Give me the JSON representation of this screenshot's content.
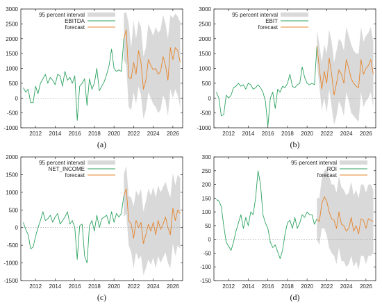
{
  "colors": {
    "actual": "#2ca25f",
    "forecast": "#e6842a",
    "interval": "#d9d9d9",
    "axis": "#222222",
    "zero_line": "#9a9a9a"
  },
  "chart_data": [
    {
      "type": "line",
      "caption": "(a)",
      "legend": {
        "placement": "top-left",
        "interval_label": "95 percent interval",
        "series_label": "EBITDA",
        "forecast_label": "forecast"
      },
      "ylim": [
        -1000,
        3000
      ],
      "yticks": [
        -1000,
        -500,
        0,
        500,
        1000,
        1500,
        2000,
        2500,
        3000
      ],
      "xlim": [
        2010.5,
        2027.0
      ],
      "xticks": [
        2012,
        2014,
        2016,
        2018,
        2020,
        2022,
        2024,
        2026
      ],
      "series": [
        {
          "name": "EBITDA",
          "role": "actual",
          "x": [
            2010.75,
            2011.0,
            2011.25,
            2011.5,
            2011.75,
            2012.0,
            2012.25,
            2012.5,
            2012.75,
            2013.0,
            2013.25,
            2013.5,
            2013.75,
            2014.0,
            2014.25,
            2014.5,
            2014.75,
            2015.0,
            2015.25,
            2015.5,
            2015.75,
            2016.0,
            2016.25,
            2016.5,
            2016.75,
            2017.0,
            2017.25,
            2017.5,
            2017.75,
            2018.0,
            2018.25,
            2018.5,
            2018.75,
            2019.0,
            2019.25,
            2019.5,
            2019.75,
            2020.0,
            2020.25,
            2020.5,
            2020.75,
            2021.0
          ],
          "y": [
            350,
            200,
            300,
            -150,
            -150,
            400,
            150,
            500,
            650,
            800,
            500,
            700,
            600,
            450,
            800,
            750,
            400,
            900,
            600,
            700,
            500,
            750,
            -750,
            400,
            500,
            650,
            -250,
            650,
            300,
            500,
            1000,
            250,
            400,
            550,
            800,
            1100,
            1650,
            1000,
            900,
            950,
            900,
            2000
          ]
        },
        {
          "name": "forecast",
          "role": "forecast",
          "x": [
            2021.0,
            2021.25,
            2021.5,
            2021.75,
            2022.0,
            2022.25,
            2022.5,
            2022.75,
            2023.0,
            2023.25,
            2023.5,
            2023.75,
            2024.0,
            2024.25,
            2024.5,
            2024.75,
            2025.0,
            2025.25,
            2025.5,
            2025.75,
            2026.0,
            2026.25,
            2026.5,
            2026.75
          ],
          "y": [
            2000,
            2300,
            700,
            650,
            1200,
            800,
            1600,
            1200,
            300,
            600,
            1300,
            1100,
            950,
            1000,
            800,
            900,
            1400,
            1100,
            600,
            1700,
            1300,
            1700,
            1600,
            1200
          ]
        },
        {
          "name": "95 percent interval",
          "role": "interval",
          "x": [
            2021.0,
            2021.25,
            2021.5,
            2021.75,
            2022.0,
            2022.25,
            2022.5,
            2022.75,
            2023.0,
            2023.25,
            2023.5,
            2023.75,
            2024.0,
            2024.25,
            2024.5,
            2024.75,
            2025.0,
            2025.25,
            2025.5,
            2025.75,
            2026.0,
            2026.25,
            2026.5,
            2026.75
          ],
          "lower": [
            1300,
            1100,
            -300,
            -400,
            200,
            -200,
            400,
            100,
            -700,
            -400,
            200,
            0,
            -200,
            -300,
            -500,
            -400,
            100,
            -100,
            -600,
            300,
            0,
            300,
            100,
            -300
          ],
          "upper": [
            2850,
            2900,
            2500,
            1700,
            2600,
            2000,
            2600,
            2400,
            1400,
            1700,
            2500,
            2300,
            2100,
            2400,
            2200,
            2300,
            2800,
            2500,
            2000,
            2800,
            2700,
            2850,
            2750,
            2550
          ]
        }
      ]
    },
    {
      "type": "line",
      "caption": "(b)",
      "legend": {
        "placement": "top-left",
        "interval_label": "95 percent interval",
        "series_label": "EBIT",
        "forecast_label": "forecast"
      },
      "ylim": [
        -1000,
        3000
      ],
      "yticks": [
        -1000,
        -500,
        0,
        500,
        1000,
        1500,
        2000,
        2500,
        3000
      ],
      "xlim": [
        2010.5,
        2027.0
      ],
      "xticks": [
        2012,
        2014,
        2016,
        2018,
        2020,
        2022,
        2024,
        2026
      ],
      "series": [
        {
          "name": "EBIT",
          "role": "actual",
          "x": [
            2010.75,
            2011.0,
            2011.25,
            2011.5,
            2011.75,
            2012.0,
            2012.25,
            2012.5,
            2012.75,
            2013.0,
            2013.25,
            2013.5,
            2013.75,
            2014.0,
            2014.25,
            2014.5,
            2014.75,
            2015.0,
            2015.25,
            2015.5,
            2015.75,
            2016.0,
            2016.25,
            2016.5,
            2016.75,
            2017.0,
            2017.25,
            2017.5,
            2017.75,
            2018.0,
            2018.25,
            2018.5,
            2018.75,
            2019.0,
            2019.25,
            2019.5,
            2019.75,
            2020.0,
            2020.25,
            2020.5,
            2020.75,
            2021.0
          ],
          "y": [
            200,
            0,
            -600,
            -550,
            100,
            0,
            100,
            350,
            400,
            500,
            400,
            450,
            300,
            500,
            450,
            300,
            350,
            450,
            350,
            200,
            -100,
            -950,
            0,
            200,
            -350,
            300,
            200,
            400,
            350,
            500,
            800,
            400,
            350,
            450,
            500,
            1050,
            700,
            500,
            450,
            500,
            450,
            1750
          ]
        },
        {
          "name": "forecast",
          "role": "forecast",
          "x": [
            2021.0,
            2021.25,
            2021.5,
            2021.75,
            2022.0,
            2022.25,
            2022.5,
            2022.75,
            2023.0,
            2023.25,
            2023.5,
            2023.75,
            2024.0,
            2024.25,
            2024.5,
            2024.75,
            2025.0,
            2025.25,
            2025.5,
            2025.75,
            2026.0,
            2026.25,
            2026.5,
            2026.75
          ],
          "y": [
            1750,
            1000,
            300,
            900,
            500,
            1350,
            800,
            100,
            500,
            950,
            800,
            500,
            1300,
            1000,
            650,
            500,
            400,
            350,
            1300,
            800,
            1000,
            1100,
            1300,
            800
          ]
        },
        {
          "name": "95 percent interval",
          "role": "interval",
          "x": [
            2021.0,
            2021.25,
            2021.5,
            2021.75,
            2022.0,
            2022.25,
            2022.5,
            2022.75,
            2023.0,
            2023.25,
            2023.5,
            2023.75,
            2024.0,
            2024.25,
            2024.5,
            2024.75,
            2025.0,
            2025.25,
            2025.5,
            2025.75,
            2026.0,
            2026.25,
            2026.5,
            2026.75
          ],
          "lower": [
            1200,
            400,
            -400,
            0,
            -500,
            300,
            -300,
            -900,
            -600,
            -100,
            -300,
            -600,
            200,
            -100,
            -500,
            -600,
            -700,
            -800,
            200,
            -300,
            -100,
            0,
            200,
            -300
          ],
          "upper": [
            2300,
            1800,
            1200,
            1800,
            1500,
            2300,
            1900,
            1200,
            1600,
            2000,
            1900,
            1600,
            2400,
            2100,
            1800,
            1600,
            1500,
            1500,
            2400,
            1900,
            2100,
            2200,
            2400,
            1900
          ]
        }
      ]
    },
    {
      "type": "line",
      "caption": "(c)",
      "legend": {
        "placement": "top-left",
        "interval_label": "95 percent interval",
        "series_label": "NET_INCOME",
        "forecast_label": "forecast"
      },
      "ylim": [
        -1500,
        2000
      ],
      "yticks": [
        -1500,
        -1000,
        -500,
        0,
        500,
        1000,
        1500,
        2000
      ],
      "xlim": [
        2010.5,
        2027.0
      ],
      "xticks": [
        2012,
        2014,
        2016,
        2018,
        2020,
        2022,
        2024,
        2026
      ],
      "series": [
        {
          "name": "NET_INCOME",
          "role": "actual",
          "x": [
            2010.75,
            2011.0,
            2011.25,
            2011.5,
            2011.75,
            2012.0,
            2012.25,
            2012.5,
            2012.75,
            2013.0,
            2013.25,
            2013.5,
            2013.75,
            2014.0,
            2014.25,
            2014.5,
            2014.75,
            2015.0,
            2015.25,
            2015.5,
            2015.75,
            2016.0,
            2016.25,
            2016.5,
            2016.75,
            2017.0,
            2017.25,
            2017.5,
            2017.75,
            2018.0,
            2018.25,
            2018.5,
            2018.75,
            2019.0,
            2019.25,
            2019.5,
            2019.75,
            2020.0,
            2020.25,
            2020.5,
            2020.75,
            2021.0
          ],
          "y": [
            150,
            -50,
            -200,
            -600,
            -550,
            -250,
            0,
            200,
            450,
            200,
            250,
            350,
            150,
            300,
            400,
            100,
            200,
            300,
            450,
            100,
            200,
            0,
            -900,
            50,
            100,
            -800,
            -1000,
            50,
            200,
            -100,
            350,
            0,
            250,
            300,
            350,
            100,
            450,
            150,
            400,
            300,
            400,
            900
          ]
        },
        {
          "name": "forecast",
          "role": "forecast",
          "x": [
            2021.0,
            2021.25,
            2021.5,
            2021.75,
            2022.0,
            2022.25,
            2022.5,
            2022.75,
            2023.0,
            2023.25,
            2023.5,
            2023.75,
            2024.0,
            2024.25,
            2024.5,
            2024.75,
            2025.0,
            2025.25,
            2025.5,
            2025.75,
            2026.0,
            2026.25,
            2026.5,
            2026.75
          ],
          "y": [
            900,
            1100,
            200,
            100,
            -300,
            200,
            0,
            150,
            -450,
            -200,
            100,
            -100,
            150,
            -200,
            200,
            -50,
            100,
            300,
            0,
            -200,
            550,
            200,
            500,
            400
          ]
        },
        {
          "name": "95 percent interval",
          "role": "interval",
          "x": [
            2021.0,
            2021.25,
            2021.5,
            2021.75,
            2022.0,
            2022.25,
            2022.5,
            2022.75,
            2023.0,
            2023.25,
            2023.5,
            2023.75,
            2024.0,
            2024.25,
            2024.5,
            2024.75,
            2025.0,
            2025.25,
            2025.5,
            2025.75,
            2026.0,
            2026.25,
            2026.5,
            2026.75
          ],
          "lower": [
            300,
            400,
            -500,
            -700,
            -1150,
            -700,
            -900,
            -800,
            -1350,
            -1150,
            -900,
            -1050,
            -850,
            -1150,
            -800,
            -1000,
            -850,
            -700,
            -1000,
            -1150,
            -450,
            -800,
            -500,
            -600
          ],
          "upper": [
            1500,
            1750,
            900,
            850,
            600,
            1050,
            900,
            1100,
            450,
            750,
            1100,
            900,
            1150,
            850,
            1200,
            1000,
            1150,
            1300,
            1050,
            850,
            1550,
            1200,
            1500,
            1400
          ]
        }
      ]
    },
    {
      "type": "line",
      "caption": "(d)",
      "legend": {
        "placement": "top-right",
        "interval_label": "95 percent interval",
        "series_label": "ROI",
        "forecast_label": "forecast"
      },
      "ylim": [
        -150,
        300
      ],
      "yticks": [
        -150,
        -100,
        -50,
        0,
        50,
        100,
        150,
        200,
        250,
        300
      ],
      "xlim": [
        2010.5,
        2027.0
      ],
      "xticks": [
        2012,
        2014,
        2016,
        2018,
        2020,
        2022,
        2024,
        2026
      ],
      "series": [
        {
          "name": "ROI",
          "role": "actual",
          "x": [
            2010.75,
            2011.0,
            2011.25,
            2011.5,
            2011.75,
            2012.0,
            2012.25,
            2012.5,
            2012.75,
            2013.0,
            2013.25,
            2013.5,
            2013.75,
            2014.0,
            2014.25,
            2014.5,
            2014.75,
            2015.0,
            2015.25,
            2015.5,
            2015.75,
            2016.0,
            2016.25,
            2016.5,
            2016.75,
            2017.0,
            2017.25,
            2017.5,
            2017.75,
            2018.0,
            2018.25,
            2018.5,
            2018.75,
            2019.0,
            2019.25,
            2019.5,
            2019.75,
            2020.0,
            2020.25,
            2020.5,
            2020.75,
            2021.0
          ],
          "y": [
            145,
            140,
            120,
            50,
            -10,
            -25,
            -40,
            -10,
            30,
            60,
            90,
            40,
            80,
            50,
            100,
            90,
            150,
            250,
            200,
            90,
            60,
            40,
            -10,
            -30,
            -20,
            -45,
            -70,
            -40,
            20,
            60,
            70,
            40,
            80,
            40,
            60,
            90,
            80,
            100,
            90,
            90,
            55,
            75
          ]
        },
        {
          "name": "forecast",
          "role": "forecast",
          "x": [
            2021.0,
            2021.25,
            2021.5,
            2021.75,
            2022.0,
            2022.25,
            2022.5,
            2022.75,
            2023.0,
            2023.25,
            2023.5,
            2023.75,
            2024.0,
            2024.25,
            2024.5,
            2024.75,
            2025.0,
            2025.25,
            2025.5,
            2025.75,
            2026.0,
            2026.25,
            2026.5,
            2026.75
          ],
          "y": [
            75,
            65,
            130,
            155,
            140,
            100,
            75,
            70,
            40,
            100,
            55,
            50,
            30,
            40,
            80,
            30,
            50,
            20,
            75,
            70,
            40,
            75,
            70,
            65
          ]
        },
        {
          "name": "95 percent interval",
          "role": "interval",
          "x": [
            2021.0,
            2021.25,
            2021.5,
            2021.75,
            2022.0,
            2022.25,
            2022.5,
            2022.75,
            2023.0,
            2023.25,
            2023.5,
            2023.75,
            2024.0,
            2024.25,
            2024.5,
            2024.75,
            2025.0,
            2025.25,
            2025.5,
            2025.75,
            2026.0,
            2026.25,
            2026.5,
            2026.75
          ],
          "lower": [
            0,
            -20,
            40,
            40,
            15,
            -30,
            -50,
            -60,
            -90,
            -30,
            -80,
            -80,
            -100,
            -90,
            -60,
            -100,
            -80,
            -110,
            -60,
            -60,
            -90,
            -60,
            -60,
            -50
          ],
          "upper": [
            150,
            150,
            220,
            250,
            260,
            230,
            200,
            200,
            170,
            230,
            190,
            180,
            160,
            170,
            210,
            160,
            180,
            150,
            200,
            200,
            170,
            200,
            200,
            180
          ]
        }
      ]
    }
  ]
}
